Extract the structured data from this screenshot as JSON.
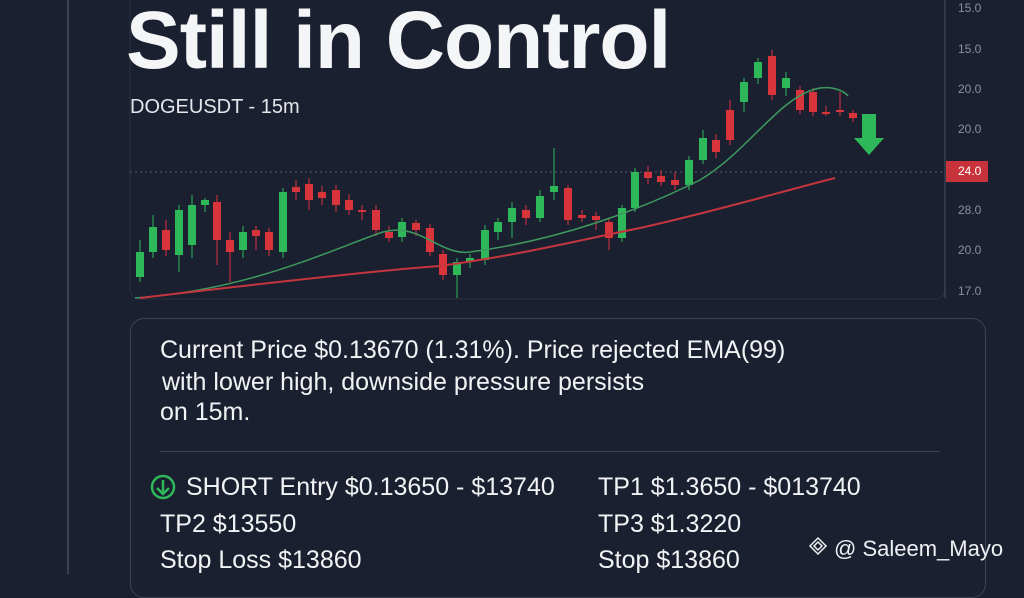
{
  "header": {
    "title": "Still in Control",
    "subtitle": "DOGEUSDT - 15m"
  },
  "axis": {
    "labels": [
      "15.0",
      "15.0",
      "20.0",
      "20.0",
      "24.0",
      "28.0",
      "20.0",
      "17.0"
    ]
  },
  "summary": {
    "lines": [
      "Current Price $0.13670 (1.31%). Price rejected EMA(99)",
      "with lower high, downside pressure persists",
      "on 15m."
    ]
  },
  "signals": {
    "rows": [
      [
        "SHORT Entry $0.13650 - $13740",
        "TP1 $1.3650 - $013740"
      ],
      [
        "TP2 $13550",
        "TP3 $1.3220"
      ],
      [
        "Stop Loss $13860",
        "Stop $13860"
      ]
    ]
  },
  "watermark": "@ Saleem_Mayo"
}
